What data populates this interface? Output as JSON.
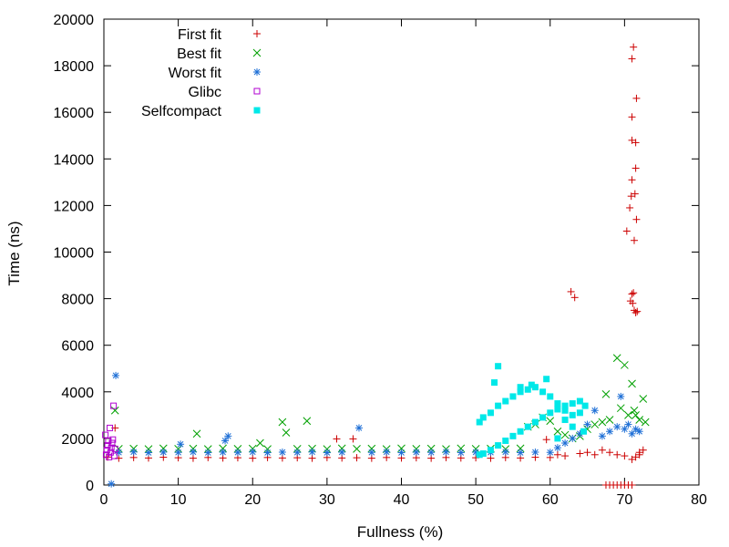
{
  "chart_data": {
    "type": "scatter",
    "title": "",
    "xlabel": "Fullness (%)",
    "ylabel": "Time (ns)",
    "xlim": [
      0,
      80
    ],
    "ylim": [
      0,
      20000
    ],
    "x_ticks": [
      0,
      10,
      20,
      30,
      40,
      50,
      60,
      70,
      80
    ],
    "y_ticks": [
      0,
      2000,
      4000,
      6000,
      8000,
      10000,
      12000,
      14000,
      16000,
      18000,
      20000
    ],
    "grid": false,
    "legend_position": "top-left",
    "series": [
      {
        "name": "First fit",
        "marker": "plus",
        "color": "#cc0000",
        "points": [
          [
            0.5,
            1200
          ],
          [
            1.5,
            2450
          ],
          [
            2,
            1150
          ],
          [
            4,
            1180
          ],
          [
            6,
            1160
          ],
          [
            8,
            1190
          ],
          [
            10,
            1170
          ],
          [
            12,
            1150
          ],
          [
            14,
            1180
          ],
          [
            16,
            1160
          ],
          [
            18,
            1170
          ],
          [
            20,
            1150
          ],
          [
            22,
            1180
          ],
          [
            24,
            1160
          ],
          [
            26,
            1170
          ],
          [
            28,
            1150
          ],
          [
            30,
            1180
          ],
          [
            31.3,
            1980
          ],
          [
            33.5,
            1980
          ],
          [
            32,
            1160
          ],
          [
            34,
            1170
          ],
          [
            36,
            1150
          ],
          [
            38,
            1180
          ],
          [
            40,
            1160
          ],
          [
            42,
            1170
          ],
          [
            44,
            1150
          ],
          [
            46,
            1180
          ],
          [
            48,
            1160
          ],
          [
            50,
            1170
          ],
          [
            52,
            1150
          ],
          [
            54,
            1180
          ],
          [
            56,
            1160
          ],
          [
            58,
            1190
          ],
          [
            59.5,
            1950
          ],
          [
            60,
            1180
          ],
          [
            61,
            1300
          ],
          [
            62,
            1250
          ],
          [
            62.8,
            8300
          ],
          [
            63.3,
            8050
          ],
          [
            64,
            1350
          ],
          [
            65,
            1400
          ],
          [
            66,
            1300
          ],
          [
            67,
            1500
          ],
          [
            67.5,
            0
          ],
          [
            68,
            0
          ],
          [
            68.5,
            0
          ],
          [
            69,
            0
          ],
          [
            69.5,
            0
          ],
          [
            70,
            0
          ],
          [
            70.5,
            0
          ],
          [
            71,
            0
          ],
          [
            68,
            1400
          ],
          [
            69,
            1300
          ],
          [
            70,
            1250
          ],
          [
            70.3,
            10900
          ],
          [
            70.7,
            11900
          ],
          [
            70.9,
            12400
          ],
          [
            71,
            13100
          ],
          [
            71,
            14800
          ],
          [
            71,
            15800
          ],
          [
            71,
            18300
          ],
          [
            71.2,
            18800
          ],
          [
            71.3,
            10500
          ],
          [
            71.4,
            12500
          ],
          [
            71.5,
            13600
          ],
          [
            71.5,
            14700
          ],
          [
            71.6,
            16600
          ],
          [
            71.6,
            11400
          ],
          [
            71,
            8200
          ],
          [
            70.8,
            7900
          ],
          [
            71.1,
            7800
          ],
          [
            71.3,
            7500
          ],
          [
            71.5,
            7400
          ],
          [
            71.7,
            7450
          ],
          [
            71.2,
            8250
          ],
          [
            71,
            1100
          ],
          [
            71.5,
            1200
          ],
          [
            72,
            1400
          ],
          [
            72.5,
            1500
          ],
          [
            72,
            1300
          ]
        ]
      },
      {
        "name": "Best fit",
        "marker": "cross",
        "color": "#00a000",
        "points": [
          [
            1.5,
            3200
          ],
          [
            2,
            1550
          ],
          [
            4,
            1560
          ],
          [
            6,
            1540
          ],
          [
            8,
            1570
          ],
          [
            10,
            1550
          ],
          [
            12,
            1560
          ],
          [
            12.5,
            2200
          ],
          [
            14,
            1540
          ],
          [
            16,
            1570
          ],
          [
            18,
            1550
          ],
          [
            20,
            1560
          ],
          [
            21,
            1800
          ],
          [
            22,
            1540
          ],
          [
            24,
            2700
          ],
          [
            24.5,
            2250
          ],
          [
            26,
            1550
          ],
          [
            27.3,
            2750
          ],
          [
            28,
            1560
          ],
          [
            30,
            1540
          ],
          [
            32,
            1570
          ],
          [
            34,
            1550
          ],
          [
            36,
            1560
          ],
          [
            38,
            1540
          ],
          [
            40,
            1570
          ],
          [
            42,
            1550
          ],
          [
            44,
            1560
          ],
          [
            46,
            1540
          ],
          [
            48,
            1570
          ],
          [
            50,
            1550
          ],
          [
            52,
            1560
          ],
          [
            54,
            1540
          ],
          [
            56,
            1570
          ],
          [
            57,
            2500
          ],
          [
            58,
            2600
          ],
          [
            59,
            2900
          ],
          [
            60,
            2750
          ],
          [
            61,
            2300
          ],
          [
            62,
            2150
          ],
          [
            63,
            2000
          ],
          [
            64,
            2100
          ],
          [
            65,
            2400
          ],
          [
            66,
            2600
          ],
          [
            67,
            2700
          ],
          [
            67.5,
            3900
          ],
          [
            68,
            2800
          ],
          [
            69,
            5450
          ],
          [
            69.5,
            3300
          ],
          [
            70,
            5150
          ],
          [
            70.5,
            3000
          ],
          [
            71,
            4350
          ],
          [
            71.3,
            3200
          ],
          [
            71.5,
            3000
          ],
          [
            72,
            2800
          ],
          [
            72.5,
            3700
          ],
          [
            72.8,
            2700
          ]
        ]
      },
      {
        "name": "Worst fit",
        "marker": "star",
        "color": "#1e6fd6",
        "points": [
          [
            1,
            50
          ],
          [
            1.6,
            4700
          ],
          [
            2,
            1400
          ],
          [
            4,
            1420
          ],
          [
            6,
            1390
          ],
          [
            8,
            1410
          ],
          [
            10,
            1400
          ],
          [
            10.3,
            1750
          ],
          [
            12,
            1420
          ],
          [
            14,
            1390
          ],
          [
            16,
            1410
          ],
          [
            16.3,
            1900
          ],
          [
            16.7,
            2100
          ],
          [
            18,
            1400
          ],
          [
            20,
            1420
          ],
          [
            22,
            1390
          ],
          [
            24,
            1410
          ],
          [
            26,
            1400
          ],
          [
            28,
            1420
          ],
          [
            30,
            1390
          ],
          [
            32,
            1410
          ],
          [
            34.3,
            2450
          ],
          [
            36,
            1400
          ],
          [
            38,
            1420
          ],
          [
            40,
            1390
          ],
          [
            42,
            1410
          ],
          [
            44,
            1400
          ],
          [
            46,
            1420
          ],
          [
            48,
            1390
          ],
          [
            50,
            1410
          ],
          [
            52,
            1400
          ],
          [
            54,
            1420
          ],
          [
            56,
            1390
          ],
          [
            58,
            1410
          ],
          [
            60,
            1400
          ],
          [
            61,
            1600
          ],
          [
            62,
            1800
          ],
          [
            63,
            2000
          ],
          [
            64,
            2200
          ],
          [
            65,
            2600
          ],
          [
            66,
            3200
          ],
          [
            67,
            2100
          ],
          [
            68,
            2300
          ],
          [
            69,
            2500
          ],
          [
            69.5,
            3800
          ],
          [
            70,
            2400
          ],
          [
            70.5,
            2600
          ],
          [
            71,
            2200
          ],
          [
            71.5,
            2400
          ],
          [
            72,
            2300
          ]
        ]
      },
      {
        "name": "Glibc",
        "marker": "open-square",
        "color": "#b000d0",
        "points": [
          [
            0.2,
            2150
          ],
          [
            0.3,
            1300
          ],
          [
            0.4,
            1500
          ],
          [
            0.5,
            1700
          ],
          [
            0.6,
            1900
          ],
          [
            0.7,
            1200
          ],
          [
            0.8,
            2450
          ],
          [
            0.9,
            1400
          ],
          [
            1,
            1600
          ],
          [
            1.1,
            1800
          ],
          [
            1.2,
            1950
          ],
          [
            1.3,
            3400
          ],
          [
            1.4,
            1250
          ],
          [
            1.5,
            1550
          ]
        ]
      },
      {
        "name": "Selfcompact",
        "marker": "filled-square",
        "color": "#00e8e8",
        "points": [
          [
            50.5,
            1300
          ],
          [
            51,
            1350
          ],
          [
            52,
            1500
          ],
          [
            53,
            1700
          ],
          [
            54,
            1900
          ],
          [
            55,
            2100
          ],
          [
            56,
            2300
          ],
          [
            57,
            2500
          ],
          [
            58,
            2700
          ],
          [
            59,
            2900
          ],
          [
            60,
            3100
          ],
          [
            61,
            3250
          ],
          [
            62,
            3400
          ],
          [
            63,
            3500
          ],
          [
            64,
            3600
          ],
          [
            64.7,
            3400
          ],
          [
            50.5,
            2700
          ],
          [
            51,
            2900
          ],
          [
            52,
            3100
          ],
          [
            53,
            3400
          ],
          [
            54,
            3600
          ],
          [
            55,
            3800
          ],
          [
            56,
            4000
          ],
          [
            57,
            4100
          ],
          [
            58,
            4200
          ],
          [
            59,
            4000
          ],
          [
            60,
            3800
          ],
          [
            61,
            3500
          ],
          [
            62,
            3200
          ],
          [
            63,
            3000
          ],
          [
            64,
            3100
          ],
          [
            52.5,
            4400
          ],
          [
            53,
            5100
          ],
          [
            56,
            4200
          ],
          [
            57.5,
            4300
          ],
          [
            59.5,
            4550
          ],
          [
            61,
            2000
          ],
          [
            62,
            2800
          ],
          [
            63,
            2500
          ],
          [
            64.5,
            2300
          ]
        ]
      }
    ]
  }
}
